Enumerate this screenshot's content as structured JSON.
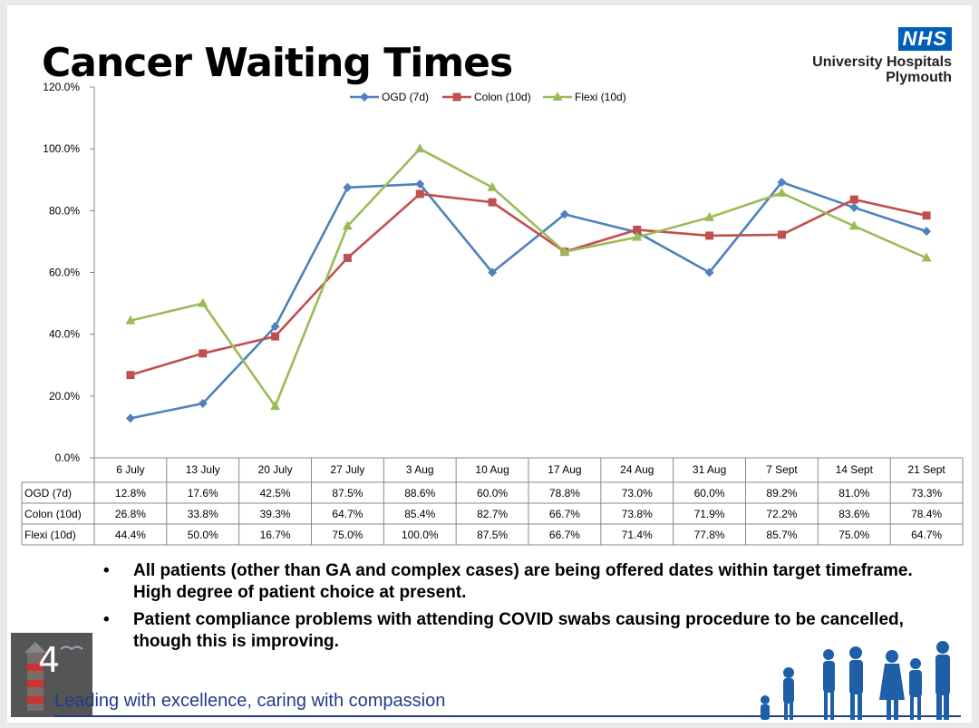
{
  "title": "Cancer Waiting Times",
  "logo": {
    "badge": "NHS",
    "line1": "University Hospitals",
    "line2": "Plymouth"
  },
  "colors": {
    "ogd": "#4f81bd",
    "colon": "#c0504d",
    "flexi": "#9bbb59",
    "nhs_blue": "#005eb8",
    "tagline": "#1f3d8a"
  },
  "chart_data": {
    "type": "line",
    "title": "",
    "xlabel": "",
    "ylabel": "",
    "ylim": [
      0,
      120
    ],
    "ytick_labels": [
      "0.0%",
      "20.0%",
      "40.0%",
      "60.0%",
      "80.0%",
      "100.0%",
      "120.0%"
    ],
    "categories": [
      "6 July",
      "13 July",
      "20 July",
      "27 July",
      "3 Aug",
      "10 Aug",
      "17 Aug",
      "24 Aug",
      "31 Aug",
      "7 Sept",
      "14 Sept",
      "21 Sept"
    ],
    "legend_position": "top-center",
    "grid": false,
    "series": [
      {
        "name": "OGD (7d)",
        "marker": "diamond-icon",
        "values": [
          12.8,
          17.6,
          42.5,
          87.5,
          88.6,
          60.0,
          78.8,
          73.0,
          60.0,
          89.2,
          81.0,
          73.3
        ],
        "labels": [
          "12.8%",
          "17.6%",
          "42.5%",
          "87.5%",
          "88.6%",
          "60.0%",
          "78.8%",
          "73.0%",
          "60.0%",
          "89.2%",
          "81.0%",
          "73.3%"
        ]
      },
      {
        "name": "Colon (10d)",
        "marker": "square-icon",
        "values": [
          26.8,
          33.8,
          39.3,
          64.7,
          85.4,
          82.7,
          66.7,
          73.8,
          71.9,
          72.2,
          83.6,
          78.4
        ],
        "labels": [
          "26.8%",
          "33.8%",
          "39.3%",
          "64.7%",
          "85.4%",
          "82.7%",
          "66.7%",
          "73.8%",
          "71.9%",
          "72.2%",
          "83.6%",
          "78.4%"
        ]
      },
      {
        "name": "Flexi (10d)",
        "marker": "triangle-icon",
        "values": [
          44.4,
          50.0,
          16.7,
          75.0,
          100.0,
          87.5,
          66.7,
          71.4,
          77.8,
          85.7,
          75.0,
          64.7
        ],
        "labels": [
          "44.4%",
          "50.0%",
          "16.7%",
          "75.0%",
          "100.0%",
          "87.5%",
          "66.7%",
          "71.4%",
          "77.8%",
          "85.7%",
          "75.0%",
          "64.7%"
        ]
      }
    ]
  },
  "bullets": [
    "All patients (other than GA and complex cases) are being offered dates within target timeframe. High degree of patient choice at present.",
    "Patient compliance problems with attending COVID swabs causing procedure to be cancelled, though this is improving."
  ],
  "bullet_symbol": "•",
  "page_number": "4",
  "tagline": "Leading with excellence, caring with compassion"
}
